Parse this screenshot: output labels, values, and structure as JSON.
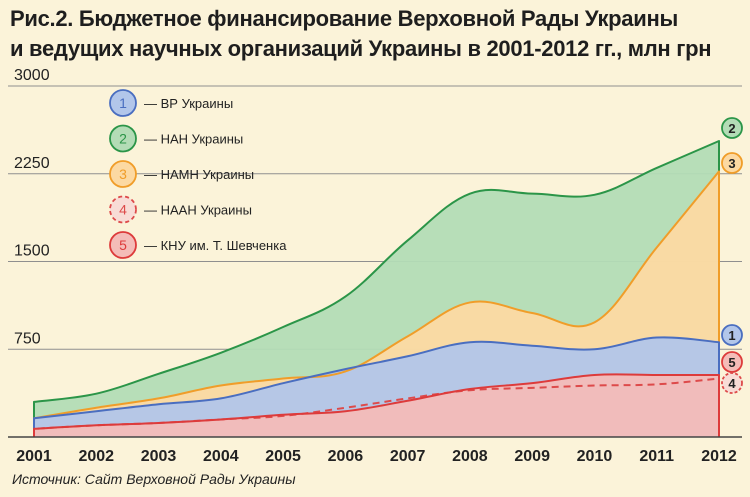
{
  "title_line1": "Рис.2. Бюджетное финансирование Верховной Рады Украины",
  "title_line2": "и ведущих научных организаций Украины в 2001-2012 гг., млн грн",
  "source": "Источник: Сайт Верховной Рады Украины",
  "chart_data": {
    "type": "area",
    "title": "Рис.2. Бюджетное финансирование Верховной Рады Украины и ведущих научных организаций Украины в 2001-2012 гг., млн грн",
    "xlabel": "",
    "ylabel": "",
    "ylim": [
      0,
      3000
    ],
    "yticks": [
      750,
      1500,
      2250,
      3000
    ],
    "ytick_labels": [
      "750",
      "1500",
      "2250",
      "3000"
    ],
    "categories": [
      "2001",
      "2002",
      "2003",
      "2004",
      "2005",
      "2006",
      "2007",
      "2008",
      "2009",
      "2010",
      "2011",
      "2012"
    ],
    "series": [
      {
        "id": "2",
        "name": "— НАН Украины",
        "values": [
          300,
          370,
          540,
          720,
          940,
          1200,
          1680,
          2080,
          2080,
          2070,
          2300,
          2530
        ],
        "fill": "#b3dcb6",
        "stroke": "#2b9548",
        "dashed": false
      },
      {
        "id": "3",
        "name": "— НАМН Украины",
        "values": [
          160,
          250,
          330,
          440,
          500,
          560,
          860,
          1150,
          1060,
          980,
          1620,
          2270
        ],
        "fill": "#fcd9a2",
        "stroke": "#f09d29",
        "dashed": false
      },
      {
        "id": "1",
        "name": "— ВР Украины",
        "values": [
          160,
          220,
          280,
          330,
          460,
          580,
          690,
          810,
          780,
          750,
          850,
          810
        ],
        "fill": "#b2c6ea",
        "stroke": "#4a6ec0",
        "dashed": false
      },
      {
        "id": "4",
        "name": "— НААН Украины",
        "values": [
          70,
          100,
          120,
          150,
          180,
          250,
          330,
          400,
          420,
          440,
          450,
          500
        ],
        "fill": "none",
        "stroke": "#dd4a4a",
        "dashed": true
      },
      {
        "id": "5",
        "name": "— КНУ им. Т. Шевченка",
        "values": [
          70,
          100,
          120,
          150,
          190,
          220,
          310,
          410,
          460,
          530,
          530,
          530
        ],
        "fill": "#f4bcb8",
        "stroke": "#dd3b3b",
        "dashed": false
      }
    ],
    "legend": {
      "position": "top-left",
      "order": [
        "1",
        "2",
        "3",
        "4",
        "5"
      ]
    },
    "end_markers": [
      "2",
      "3",
      "1",
      "5",
      "4"
    ]
  }
}
